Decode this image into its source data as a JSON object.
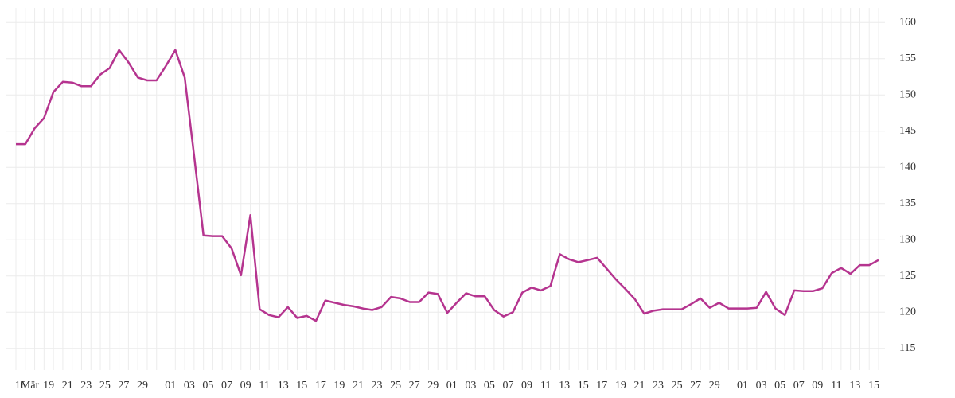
{
  "chart_data": {
    "type": "line",
    "color": "#b5348f",
    "grid": true,
    "ylim": [
      112,
      162
    ],
    "yticks": [
      115,
      120,
      125,
      130,
      135,
      140,
      145,
      150,
      155,
      160
    ],
    "categories": [
      null,
      "16",
      "Mär",
      null,
      "19",
      null,
      "21",
      null,
      "23",
      null,
      "25",
      null,
      "27",
      null,
      "29",
      null,
      null,
      "01",
      null,
      "03",
      null,
      "05",
      null,
      "07",
      null,
      "09",
      null,
      "11",
      null,
      "13",
      null,
      "15",
      null,
      "17",
      null,
      "19",
      null,
      "21",
      null,
      "23",
      null,
      "25",
      null,
      "27",
      null,
      "29",
      null,
      "01",
      null,
      "03",
      null,
      "05",
      null,
      "07",
      null,
      "09",
      null,
      "11",
      null,
      "13",
      null,
      "15",
      null,
      "17",
      null,
      "19",
      null,
      "21",
      null,
      "23",
      null,
      "25",
      null,
      "27",
      null,
      "29",
      null,
      null,
      "01",
      null,
      "03",
      null,
      "05",
      null,
      "07",
      null,
      "09",
      null,
      "11",
      null,
      "13",
      null,
      "15"
    ],
    "values": [
      143.2,
      143.2,
      145.4,
      146.8,
      150.4,
      151.8,
      151.7,
      151.2,
      151.2,
      152.8,
      153.7,
      156.2,
      154.5,
      152.4,
      152.0,
      152.0,
      154.0,
      156.2,
      152.4,
      141.6,
      130.6,
      130.5,
      130.5,
      128.8,
      125.1,
      133.4,
      120.4,
      119.6,
      119.3,
      120.7,
      119.2,
      119.5,
      118.8,
      121.6,
      121.3,
      121.0,
      120.8,
      120.5,
      120.3,
      120.7,
      122.1,
      121.9,
      121.4,
      121.4,
      122.7,
      122.5,
      119.9,
      121.3,
      122.6,
      122.2,
      122.2,
      120.3,
      119.4,
      120.0,
      122.7,
      123.4,
      123.0,
      123.6,
      128.0,
      127.3,
      126.9,
      127.2,
      127.5,
      126.0,
      124.5,
      123.2,
      121.8,
      119.8,
      120.2,
      120.4,
      120.4,
      120.4,
      121.1,
      121.9,
      120.6,
      121.3,
      120.5,
      120.5,
      120.5,
      120.6,
      122.8,
      120.5,
      119.6,
      123.0,
      122.9,
      122.9,
      123.3,
      125.4,
      126.1,
      125.3,
      126.5,
      126.5,
      127.2
    ]
  }
}
